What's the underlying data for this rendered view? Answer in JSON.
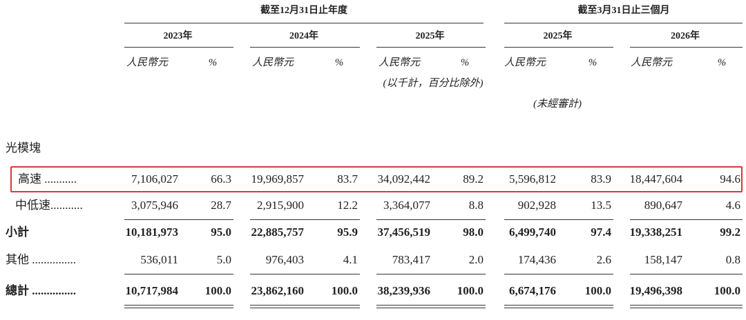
{
  "header": {
    "groups": [
      "截至12月31日止年度",
      "截至3月31日止三個月"
    ],
    "years": [
      "2023年",
      "2024年",
      "2025年",
      "2025年",
      "2026年"
    ],
    "units": [
      [
        "人民幣元",
        "%"
      ],
      [
        "人民幣元",
        "%"
      ],
      [
        "人民幣元",
        "%"
      ],
      [
        "人民幣元",
        "%"
      ],
      [
        "人民幣元",
        "%"
      ]
    ],
    "note_thousands": "(以千計，百分比除外)",
    "note_unaudited": "(未經審計)"
  },
  "table": {
    "section": "光模塊",
    "rows": [
      {
        "label": "高速 ...........",
        "bold": false,
        "highlight": true,
        "cells": [
          "7,106,027",
          "66.3",
          "19,969,857",
          "83.7",
          "34,092,442",
          "89.2",
          "5,596,812",
          "83.9",
          "18,447,604",
          "94.6"
        ]
      },
      {
        "label": "中低速...........",
        "bold": false,
        "indent": true,
        "cells": [
          "3,075,946",
          "28.7",
          "2,915,900",
          "12.2",
          "3,364,077",
          "8.8",
          "902,928",
          "13.5",
          "890,647",
          "4.6"
        ]
      },
      {
        "label": "小計",
        "bold": true,
        "cells": [
          "10,181,973",
          "95.0",
          "22,885,757",
          "95.9",
          "37,456,519",
          "98.0",
          "6,499,740",
          "97.4",
          "19,338,251",
          "99.2"
        ]
      },
      {
        "label": "其他 ...............",
        "bold": false,
        "cells": [
          "536,011",
          "5.0",
          "976,403",
          "4.1",
          "783,417",
          "2.0",
          "174,436",
          "2.6",
          "158,147",
          "0.8"
        ]
      },
      {
        "label": "總計 ...............",
        "bold": true,
        "cells": [
          "10,717,984",
          "100.0",
          "23,862,160",
          "100.0",
          "38,239,936",
          "100.0",
          "6,674,176",
          "100.0",
          "19,496,398",
          "100.0"
        ]
      }
    ]
  }
}
